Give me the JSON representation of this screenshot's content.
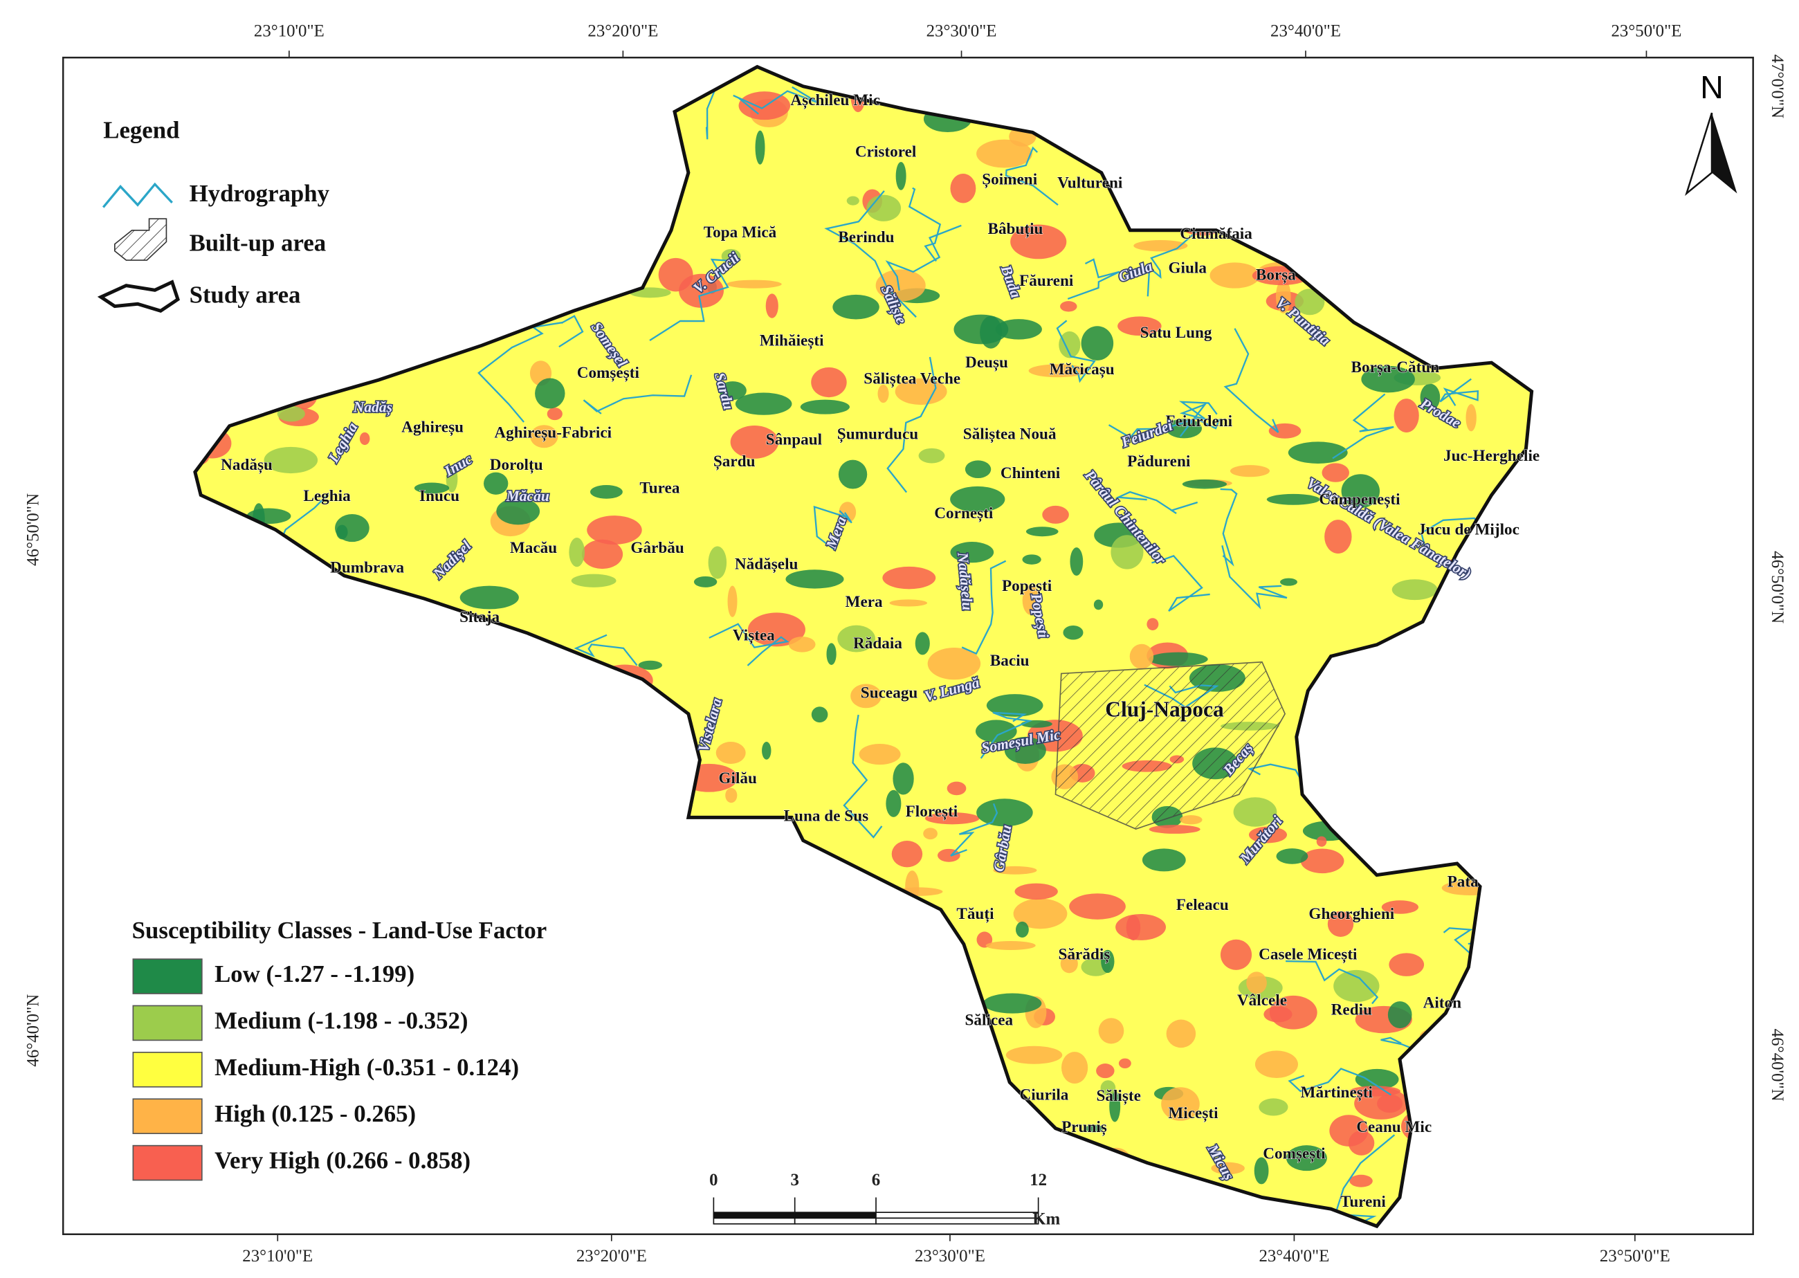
{
  "map": {
    "graticule": {
      "top": [
        "23°10'0\"E",
        "23°20'0\"E",
        "23°30'0\"E",
        "23°40'0\"E",
        "23°50'0\"E"
      ],
      "bottom": [
        "23°10'0\"E",
        "23°20'0\"E",
        "23°30'0\"E",
        "23°40'0\"E",
        "23°50'0\"E"
      ],
      "left": [
        "46°50'0\"N",
        "46°40'0\"N"
      ],
      "right": [
        "47°0'0\"N",
        "46°50'0\"N",
        "46°40'0\"N"
      ]
    },
    "north": "N",
    "legend": {
      "title": "Legend",
      "items": [
        "Hydrography",
        "Built-up area",
        "Study area"
      ]
    },
    "classes": {
      "title": "Susceptibility Classes - Land-Use Factor",
      "items": [
        {
          "label": "Low (-1.27 - -1.199)",
          "color": "#1f8a48"
        },
        {
          "label": "Medium (-1.198 - -0.352)",
          "color": "#9ccc4c"
        },
        {
          "label": "Medium-High (-0.351 - 0.124)",
          "color": "#ffff40"
        },
        {
          "label": "High (0.125 - 0.265)",
          "color": "#ffb347"
        },
        {
          "label": "Very High (0.266 - 0.858)",
          "color": "#f86050"
        }
      ]
    },
    "scale_bar": {
      "ticks": [
        0,
        3,
        6,
        12
      ],
      "unit": "Km"
    },
    "places": [
      "Așchileu Mic",
      "Cristorel",
      "Șoimeni",
      "Vultureni",
      "Topa Mică",
      "Berindu",
      "Bâbuțiu",
      "Ciumăfaia",
      "V. Crucii",
      "Făureni",
      "Giula",
      "Giula",
      "Borșa",
      "Buda",
      "Săliște",
      "V. Puntiția",
      "Satu Lung",
      "Mihăiești",
      "Someșel",
      "Comșești",
      "Sardu",
      "Săliștea Veche",
      "Deușu",
      "Măcicașu",
      "Borșa-Cătun",
      "Nadăș",
      "Aghireșu",
      "Aghireșu-Fabrici",
      "Leghia",
      "Sânpaul",
      "Șumurducu",
      "Săliștea Nouă",
      "Feiurdeni",
      "Feiurdei",
      "Prodae",
      "Nadășu",
      "Inuc",
      "Dorolțu",
      "Șardu",
      "Chinteni",
      "Pădureni",
      "Juc-Herghelie",
      "Leghia",
      "Inucu",
      "Tureа",
      "Pârâul Chintenilor",
      "Valea Caldă (Valea Fânațelor)",
      "Câmpenești",
      "Cornești",
      "Măcău",
      "Jucu de Mijloc",
      "Macău",
      "Gârbău",
      "Mera",
      "Nădășelu",
      "Nadișel",
      "Dumbrava",
      "Popești",
      "Nadășelu",
      "Popești",
      "Mera",
      "Sitaja",
      "Viștea",
      "Rădaia",
      "Baciu",
      "Suceagu",
      "V. Lungă",
      "Vistelara",
      "Cluj-Napoca",
      "Someșul Mic",
      "Becaș",
      "Gilău",
      "Luna de Sus",
      "Florești",
      "Gârbău",
      "Murători",
      "Pata",
      "Tăuți",
      "Feleacu",
      "Gheorghieni",
      "Sărădiș",
      "Casele Micești",
      "Sălicea",
      "Vâlcele",
      "Rediu",
      "Aiton",
      "Ciurila",
      "Săliște",
      "Micești",
      "Mărtinești",
      "Ceanu Mic",
      "Pruniș",
      "Micuș",
      "Comșești",
      "Tureni"
    ]
  }
}
